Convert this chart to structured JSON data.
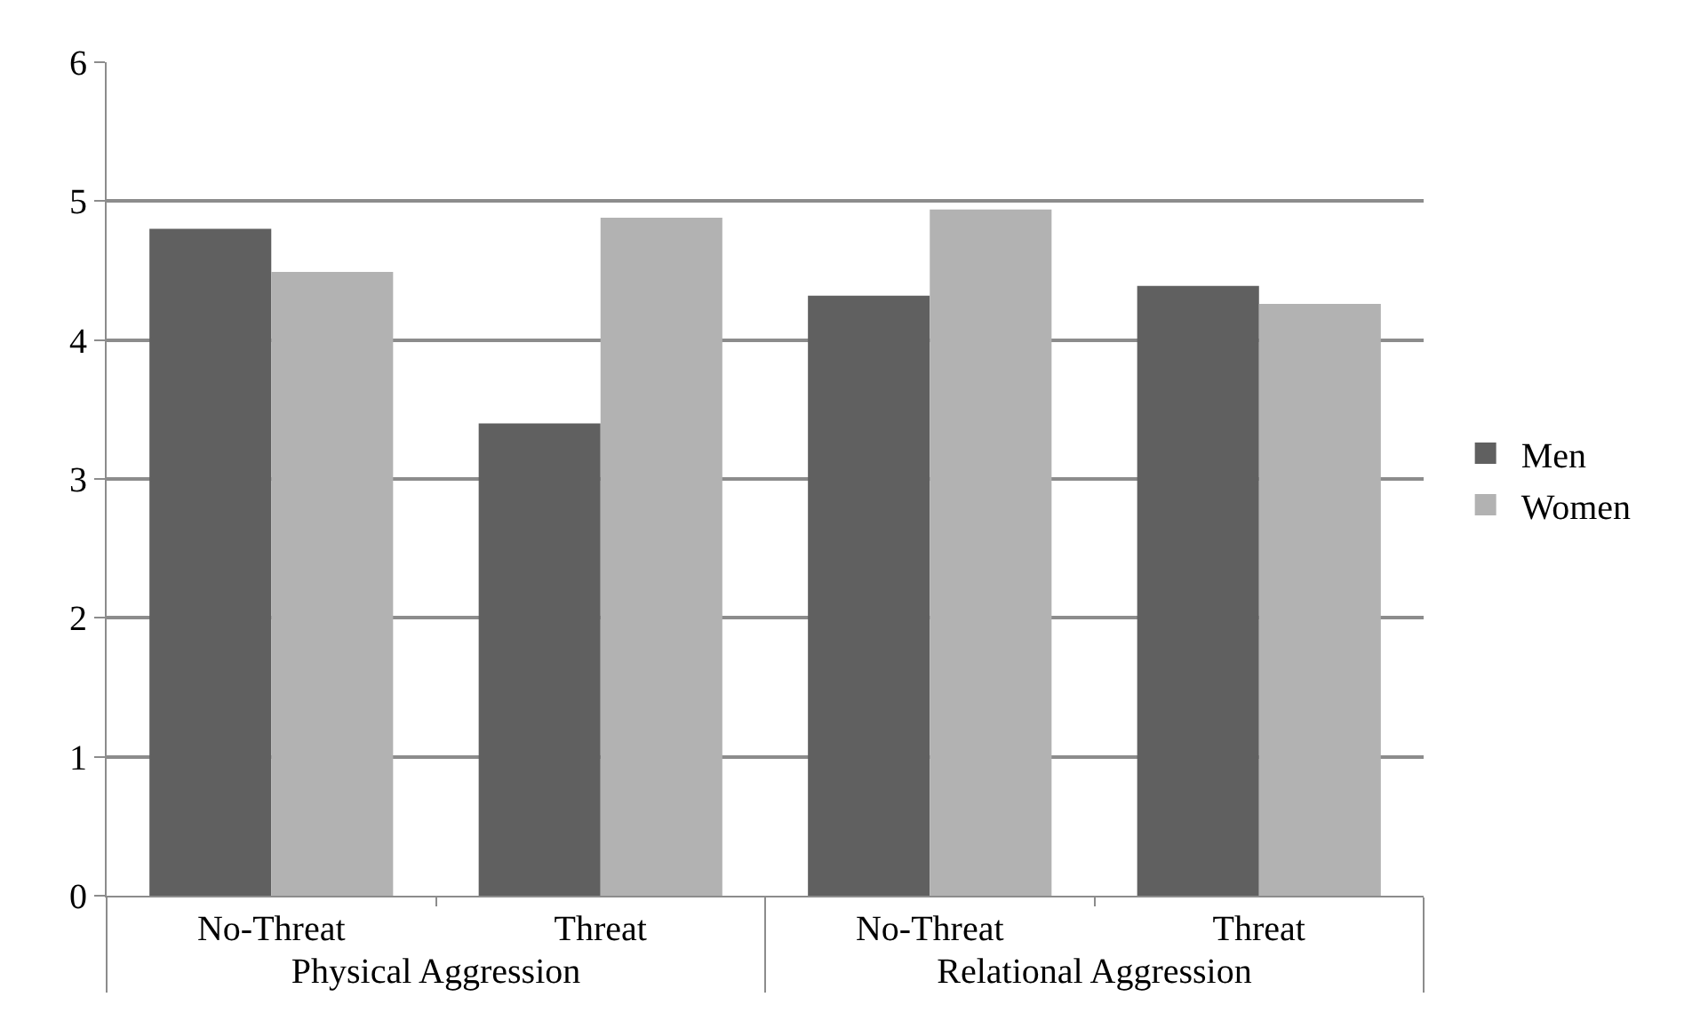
{
  "chart_data": {
    "type": "bar",
    "categories": [
      "No-Threat",
      "Threat",
      "No-Threat",
      "Threat"
    ],
    "annotations": [
      "Physical Aggression",
      "Relational Aggression"
    ],
    "series": [
      {
        "name": "Men",
        "color": "#606060",
        "values": [
          4.8,
          3.4,
          4.32,
          4.39
        ]
      },
      {
        "name": "Women",
        "color": "#b2b2b2",
        "values": [
          4.49,
          4.88,
          4.94,
          4.26
        ]
      }
    ],
    "ylim": [
      0,
      6
    ],
    "yticks": [
      0,
      1,
      2,
      3,
      4,
      5,
      6
    ],
    "grid": "y",
    "legend": "right"
  }
}
